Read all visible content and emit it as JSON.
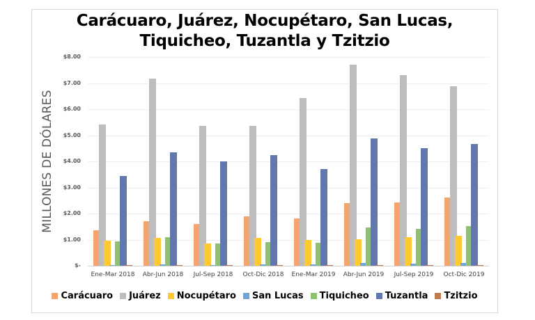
{
  "chart_data": {
    "type": "bar",
    "title": "Carácuaro, Juárez, Nocupétaro, San Lucas, Tiquicheo, Tuzantla y Tzitzio",
    "title_lines": [
      "Carácuaro, Juárez, Nocupétaro, San Lucas,",
      "Tiquicheo, Tuzantla y Tzitzio"
    ],
    "xlabel": "",
    "ylabel": "MILLONES DE DÓLARES",
    "ylim": [
      0,
      8
    ],
    "yticks": [
      "$-",
      "$1.00",
      "$2.00",
      "$3.00",
      "$4.00",
      "$5.00",
      "$6.00",
      "$7.00",
      "$8.00"
    ],
    "grid": true,
    "legend_position": "bottom",
    "categories": [
      "Ene-Mar 2018",
      "Abr-Jun 2018",
      "Jul-Sep 2018",
      "Oct-Dic 2018",
      "Ene-Mar 2019",
      "Abr-Jun 2019",
      "Jul-Sep 2019",
      "Oct-Dic 2019"
    ],
    "series": [
      {
        "name": "Carácuaro",
        "color": "#f4a46c",
        "values": [
          1.37,
          1.72,
          1.61,
          1.9,
          1.82,
          2.41,
          2.44,
          2.61
        ]
      },
      {
        "name": "Juárez",
        "color": "#bdbdbd",
        "values": [
          5.41,
          7.17,
          5.37,
          5.37,
          6.42,
          7.72,
          7.32,
          6.88
        ]
      },
      {
        "name": "Nocupétaro",
        "color": "#ffc933",
        "values": [
          0.96,
          1.07,
          0.86,
          1.07,
          0.98,
          1.01,
          1.09,
          1.15
        ]
      },
      {
        "name": "San Lucas",
        "color": "#6fa5d8",
        "values": [
          0.04,
          0.05,
          0.03,
          0.05,
          0.05,
          0.11,
          0.09,
          0.11
        ]
      },
      {
        "name": "Tiquicheo",
        "color": "#8dc26f",
        "values": [
          0.93,
          1.09,
          0.85,
          0.91,
          0.88,
          1.47,
          1.41,
          1.51
        ]
      },
      {
        "name": "Tuzantla",
        "color": "#6278ad",
        "values": [
          3.44,
          4.35,
          4.0,
          4.24,
          3.7,
          4.88,
          4.51,
          4.67
        ]
      },
      {
        "name": "Tzitzio",
        "color": "#c07a4f",
        "values": [
          0.01,
          0.01,
          0.01,
          0.02,
          0.02,
          0.03,
          0.03,
          0.04
        ]
      }
    ]
  }
}
